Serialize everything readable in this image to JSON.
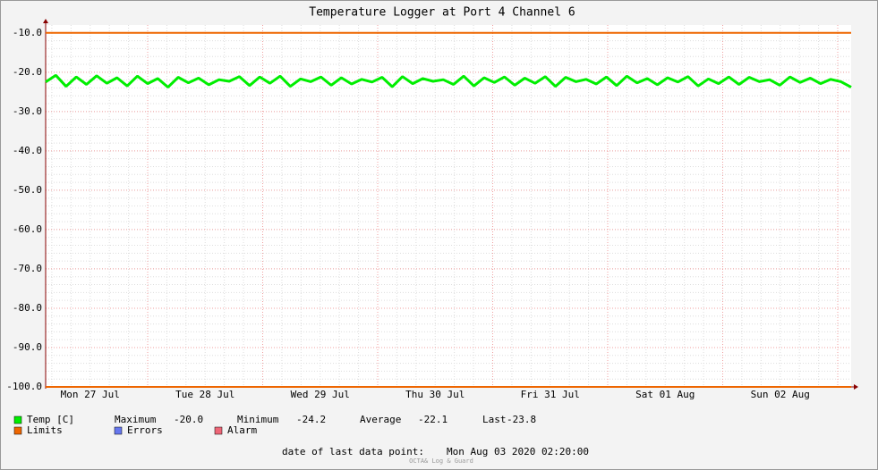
{
  "chart_data": {
    "type": "line",
    "title": "Temperature Logger at Port 4 Channel 6",
    "xtick_labels": [
      "Mon 27 Jul",
      "Tue 28 Jul",
      "Wed 29 Jul",
      "Thu 30 Jul",
      "Fri 31 Jul",
      "Sat 01 Aug",
      "Sun 02 Aug"
    ],
    "ylim": [
      -100,
      -8
    ],
    "yticks": [
      {
        "value": -10,
        "label": "-10.0"
      },
      {
        "value": -20,
        "label": "-20.0"
      },
      {
        "value": -30,
        "label": "-30.0"
      },
      {
        "value": -40,
        "label": "-40.0"
      },
      {
        "value": -50,
        "label": "-50.0"
      },
      {
        "value": -60,
        "label": "-60.0"
      },
      {
        "value": -70,
        "label": "-70.0"
      },
      {
        "value": -80,
        "label": "-80.0"
      },
      {
        "value": -90,
        "label": "-90.0"
      },
      {
        "value": -100,
        "label": "-100.0"
      }
    ],
    "grid": true,
    "series": [
      {
        "name": "Temp [C]",
        "color": "#00ee00",
        "values": [
          -22.5,
          -20.8,
          -23.6,
          -21.2,
          -23.1,
          -20.9,
          -22.8,
          -21.4,
          -23.5,
          -21.0,
          -22.9,
          -21.6,
          -23.8,
          -21.3,
          -22.7,
          -21.5,
          -23.2,
          -21.9,
          -22.3,
          -21.1,
          -23.4,
          -21.2,
          -22.8,
          -21.0,
          -23.6,
          -21.7,
          -22.4,
          -21.2,
          -23.3,
          -21.4,
          -23.0,
          -21.8,
          -22.5,
          -21.3,
          -23.7,
          -21.1,
          -22.9,
          -21.6,
          -22.3,
          -21.9,
          -23.1,
          -21.0,
          -23.5,
          -21.4,
          -22.6,
          -21.2,
          -23.3,
          -21.5,
          -22.8,
          -21.1,
          -23.6,
          -21.3,
          -22.4,
          -21.8,
          -23.0,
          -21.2,
          -23.4,
          -21.0,
          -22.7,
          -21.6,
          -23.2,
          -21.4,
          -22.5,
          -21.1,
          -23.5,
          -21.7,
          -22.9,
          -21.2,
          -23.1,
          -21.3,
          -22.4,
          -21.9,
          -23.3,
          -21.2,
          -22.6,
          -21.5,
          -22.9,
          -21.8,
          -22.4,
          -23.8
        ]
      },
      {
        "name": "Limits",
        "color": "#ee6600",
        "values": [
          -10,
          -100
        ]
      },
      {
        "name": "Errors",
        "color": "#6677ee"
      },
      {
        "name": "Alarm",
        "color": "#ee6677"
      }
    ],
    "stats": [
      [
        "Maximum",
        "-20.0"
      ],
      [
        "Minimum",
        "-24.2"
      ],
      [
        "Average",
        "-22.1"
      ],
      [
        "Last",
        "-23.8"
      ]
    ],
    "last_point_label": "date of last data point:",
    "last_point": "Mon Aug 03 2020 02:20:00",
    "watermark": "OCTA& Log & Guard"
  }
}
